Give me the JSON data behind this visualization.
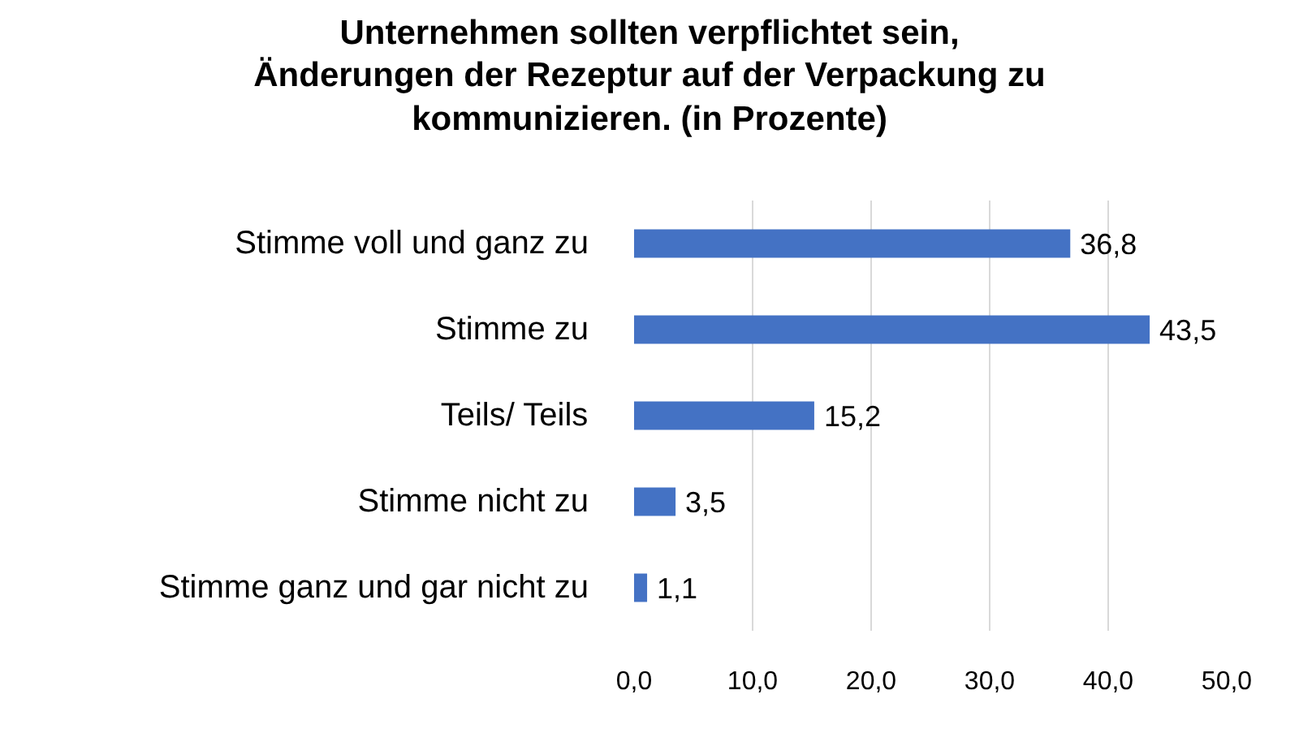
{
  "chart_data": {
    "type": "bar",
    "orientation": "horizontal",
    "title": "Unternehmen sollten verpflichtet sein,\nÄnderungen der Rezeptur auf der Verpackung zu\nkommunizieren. (in Prozente)",
    "categories": [
      "Stimme voll und ganz zu",
      "Stimme zu",
      "Teils/ Teils",
      "Stimme nicht zu",
      "Stimme ganz und gar nicht zu"
    ],
    "values": [
      36.8,
      43.5,
      15.2,
      3.5,
      1.1
    ],
    "value_labels": [
      "36,8",
      "43,5",
      "15,2",
      "3,5",
      "1,1"
    ],
    "color": "#4472c4",
    "xlim": [
      0,
      50
    ],
    "xticks": [
      {
        "value": 0,
        "label": "0,0"
      },
      {
        "value": 10,
        "label": "10,0"
      },
      {
        "value": 20,
        "label": "20,0"
      },
      {
        "value": 30,
        "label": "30,0"
      },
      {
        "value": 40,
        "label": "40,0"
      },
      {
        "value": 50,
        "label": "50,0"
      }
    ],
    "grid": "x"
  }
}
